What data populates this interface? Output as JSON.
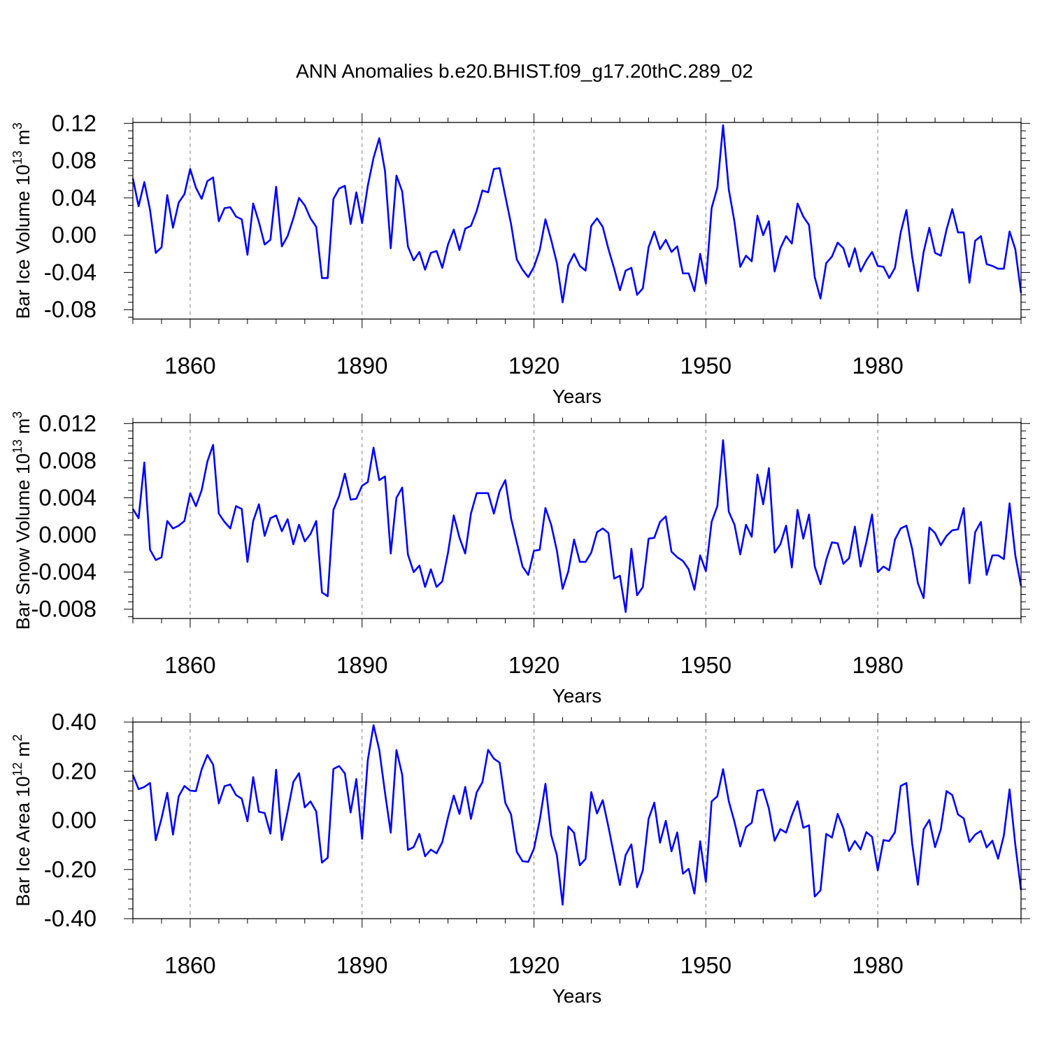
{
  "page_title": "ANN Anomalies b.e20.BHIST.f09_g17.20thC.289_02",
  "colors": {
    "line": "#0000ff",
    "axis": "#000000",
    "grid": "#808080"
  },
  "chart_data": [
    {
      "type": "line",
      "ylabel_main": "Bar Ice Volume 10",
      "ylabel_exp": "13",
      "ylabel_unit": " m",
      "ylabel_unit_exp": "3",
      "xlabel": "Years",
      "xlim": [
        1850,
        2005
      ],
      "ylim": [
        -0.09,
        0.121
      ],
      "xticks": [
        1860,
        1890,
        1920,
        1950,
        1980
      ],
      "xtick_labels": [
        "1860",
        "1890",
        "1920",
        "1950",
        "1980"
      ],
      "yticks": [
        0.12,
        0.08,
        0.04,
        0.0,
        -0.04,
        -0.08
      ],
      "ytick_labels": [
        "0.12",
        "0.08",
        "0.04",
        "0.00",
        "-0.04",
        "-0.08"
      ],
      "x_start": 1850,
      "values": [
        0.061,
        0.031,
        0.057,
        0.027,
        -0.019,
        -0.013,
        0.043,
        0.008,
        0.035,
        0.044,
        0.071,
        0.051,
        0.039,
        0.058,
        0.062,
        0.015,
        0.029,
        0.03,
        0.02,
        0.017,
        -0.021,
        0.034,
        0.014,
        -0.01,
        -0.005,
        0.052,
        -0.012,
        -0.001,
        0.018,
        0.04,
        0.032,
        0.018,
        0.009,
        -0.046,
        -0.046,
        0.039,
        0.05,
        0.053,
        0.012,
        0.046,
        0.013,
        0.053,
        0.083,
        0.104,
        0.069,
        -0.014,
        0.064,
        0.047,
        -0.012,
        -0.027,
        -0.018,
        -0.037,
        -0.019,
        -0.017,
        -0.035,
        -0.01,
        0.006,
        -0.016,
        0.007,
        0.01,
        0.026,
        0.048,
        0.046,
        0.071,
        0.072,
        0.042,
        0.012,
        -0.026,
        -0.037,
        -0.045,
        -0.034,
        -0.016,
        0.017,
        -0.005,
        -0.03,
        -0.072,
        -0.032,
        -0.02,
        -0.033,
        -0.038,
        0.01,
        0.018,
        0.009,
        -0.015,
        -0.036,
        -0.059,
        -0.038,
        -0.035,
        -0.064,
        -0.057,
        -0.013,
        0.004,
        -0.015,
        -0.005,
        -0.018,
        -0.012,
        -0.041,
        -0.041,
        -0.06,
        -0.02,
        -0.052,
        0.029,
        0.051,
        0.118,
        0.049,
        0.014,
        -0.034,
        -0.022,
        -0.028,
        0.021,
        0.0,
        0.015,
        -0.039,
        -0.014,
        -0.001,
        -0.009,
        0.034,
        0.02,
        0.011,
        -0.045,
        -0.068,
        -0.03,
        -0.023,
        -0.008,
        -0.014,
        -0.034,
        -0.014,
        -0.039,
        -0.027,
        -0.018,
        -0.033,
        -0.034,
        -0.046,
        -0.035,
        0.003,
        0.027,
        -0.023,
        -0.06,
        -0.018,
        0.008,
        -0.019,
        -0.022,
        0.006,
        0.028,
        0.003,
        0.003,
        -0.051,
        -0.006,
        -0.001,
        -0.031,
        -0.033,
        -0.036,
        -0.036,
        0.004,
        -0.015,
        -0.062
      ]
    },
    {
      "type": "line",
      "ylabel_main": "Bar Snow Volume 10",
      "ylabel_exp": "13",
      "ylabel_unit": " m",
      "ylabel_unit_exp": "3",
      "xlabel": "Years",
      "xlim": [
        1850,
        2005
      ],
      "ylim": [
        -0.009,
        0.0121
      ],
      "xticks": [
        1860,
        1890,
        1920,
        1950,
        1980
      ],
      "xtick_labels": [
        "1860",
        "1890",
        "1920",
        "1950",
        "1980"
      ],
      "yticks": [
        0.012,
        0.008,
        0.004,
        0.0,
        -0.004,
        -0.008
      ],
      "ytick_labels": [
        "0.012",
        "0.008",
        "0.004",
        "0.000",
        "-0.004",
        "-0.008"
      ],
      "x_start": 1850,
      "values": [
        0.0028,
        0.0018,
        0.0078,
        -0.0016,
        -0.0027,
        -0.0024,
        0.0015,
        0.0007,
        0.001,
        0.0015,
        0.0045,
        0.0031,
        0.0048,
        0.0079,
        0.0097,
        0.0023,
        0.0014,
        0.0007,
        0.0031,
        0.0028,
        -0.0029,
        0.0015,
        0.0033,
        -0.0001,
        0.0018,
        0.0021,
        0.0004,
        0.0017,
        -0.001,
        0.0011,
        -0.0007,
        0.0001,
        0.0015,
        -0.0062,
        -0.0066,
        0.0027,
        0.0042,
        0.0066,
        0.0038,
        0.0039,
        0.0053,
        0.0057,
        0.0094,
        0.0059,
        0.0063,
        -0.002,
        0.004,
        0.0051,
        -0.0021,
        -0.004,
        -0.0033,
        -0.0056,
        -0.0037,
        -0.0056,
        -0.005,
        -0.0019,
        0.0021,
        -0.0003,
        -0.002,
        0.0023,
        0.0045,
        0.0045,
        0.0045,
        0.0023,
        0.0047,
        0.0059,
        0.0018,
        -0.0008,
        -0.0034,
        -0.0043,
        -0.0017,
        -0.0016,
        0.0029,
        0.0011,
        -0.0017,
        -0.0058,
        -0.0039,
        -0.0005,
        -0.0029,
        -0.0029,
        -0.0019,
        0.0003,
        0.0007,
        0.0002,
        -0.0047,
        -0.0044,
        -0.0083,
        -0.0015,
        -0.0065,
        -0.0056,
        -0.0004,
        -0.0003,
        0.0014,
        0.002,
        -0.0018,
        -0.0024,
        -0.0028,
        -0.0037,
        -0.0059,
        -0.0022,
        -0.0039,
        0.0014,
        0.0031,
        0.0102,
        0.0025,
        0.0011,
        -0.0021,
        0.0011,
        -0.0002,
        0.0065,
        0.0033,
        0.0072,
        -0.0019,
        -0.001,
        0.001,
        -0.0035,
        0.0027,
        -0.0004,
        0.0022,
        -0.0034,
        -0.0053,
        -0.0027,
        -0.0008,
        -0.0009,
        -0.0031,
        -0.0025,
        0.0009,
        -0.0034,
        -0.0008,
        0.0022,
        -0.004,
        -0.0034,
        -0.0038,
        -0.0005,
        0.0007,
        0.001,
        -0.0015,
        -0.0052,
        -0.0068,
        0.0008,
        0.0002,
        -0.0011,
        -0.0001,
        0.0005,
        0.0006,
        0.0029,
        -0.0052,
        0.0003,
        0.0014,
        -0.0043,
        -0.0022,
        -0.0022,
        -0.0026,
        0.0034,
        -0.0022,
        -0.0055
      ]
    },
    {
      "type": "line",
      "ylabel_main": "Bar Ice Area 10",
      "ylabel_exp": "12",
      "ylabel_unit": " m",
      "ylabel_unit_exp": "2",
      "xlabel": "Years",
      "xlim": [
        1850,
        2005
      ],
      "ylim": [
        -0.4,
        0.4
      ],
      "xticks": [
        1860,
        1890,
        1920,
        1950,
        1980
      ],
      "xtick_labels": [
        "1860",
        "1890",
        "1920",
        "1950",
        "1980"
      ],
      "yticks": [
        0.4,
        0.2,
        0.0,
        -0.2,
        -0.4
      ],
      "ytick_labels": [
        "0.40",
        "0.20",
        "0.00",
        "-0.20",
        "-0.40"
      ],
      "x_start": 1850,
      "values": [
        0.185,
        0.127,
        0.136,
        0.152,
        -0.081,
        0.008,
        0.112,
        -0.058,
        0.098,
        0.14,
        0.121,
        0.119,
        0.207,
        0.266,
        0.227,
        0.069,
        0.139,
        0.146,
        0.103,
        0.088,
        -0.004,
        0.176,
        0.035,
        0.03,
        -0.054,
        0.206,
        -0.08,
        0.035,
        0.156,
        0.192,
        0.053,
        0.077,
        0.036,
        -0.172,
        -0.152,
        0.209,
        0.221,
        0.191,
        0.032,
        0.168,
        -0.075,
        0.245,
        0.387,
        0.287,
        0.113,
        -0.05,
        0.286,
        0.186,
        -0.12,
        -0.109,
        -0.055,
        -0.146,
        -0.119,
        -0.134,
        -0.089,
        0.012,
        0.101,
        0.026,
        0.136,
        0.006,
        0.114,
        0.155,
        0.287,
        0.251,
        0.235,
        0.071,
        0.024,
        -0.128,
        -0.166,
        -0.169,
        -0.115,
        0.0,
        0.149,
        -0.06,
        -0.142,
        -0.343,
        -0.025,
        -0.051,
        -0.183,
        -0.157,
        0.115,
        0.028,
        0.082,
        -0.027,
        -0.145,
        -0.263,
        -0.141,
        -0.098,
        -0.272,
        -0.203,
        0.006,
        0.072,
        -0.091,
        -0.002,
        -0.126,
        -0.049,
        -0.217,
        -0.197,
        -0.298,
        -0.085,
        -0.25,
        0.077,
        0.098,
        0.208,
        0.078,
        -0.007,
        -0.106,
        -0.028,
        -0.01,
        0.12,
        0.126,
        0.048,
        -0.083,
        -0.036,
        -0.05,
        0.02,
        0.078,
        -0.03,
        -0.02,
        -0.31,
        -0.285,
        -0.055,
        -0.07,
        0.026,
        -0.032,
        -0.125,
        -0.084,
        -0.118,
        -0.048,
        -0.067,
        -0.203,
        -0.08,
        -0.084,
        -0.048,
        0.14,
        0.152,
        -0.095,
        -0.262,
        -0.036,
        0.002,
        -0.109,
        -0.036,
        0.119,
        0.103,
        0.024,
        0.008,
        -0.088,
        -0.058,
        -0.043,
        -0.11,
        -0.083,
        -0.156,
        -0.062,
        0.126,
        -0.099,
        -0.284
      ]
    }
  ]
}
